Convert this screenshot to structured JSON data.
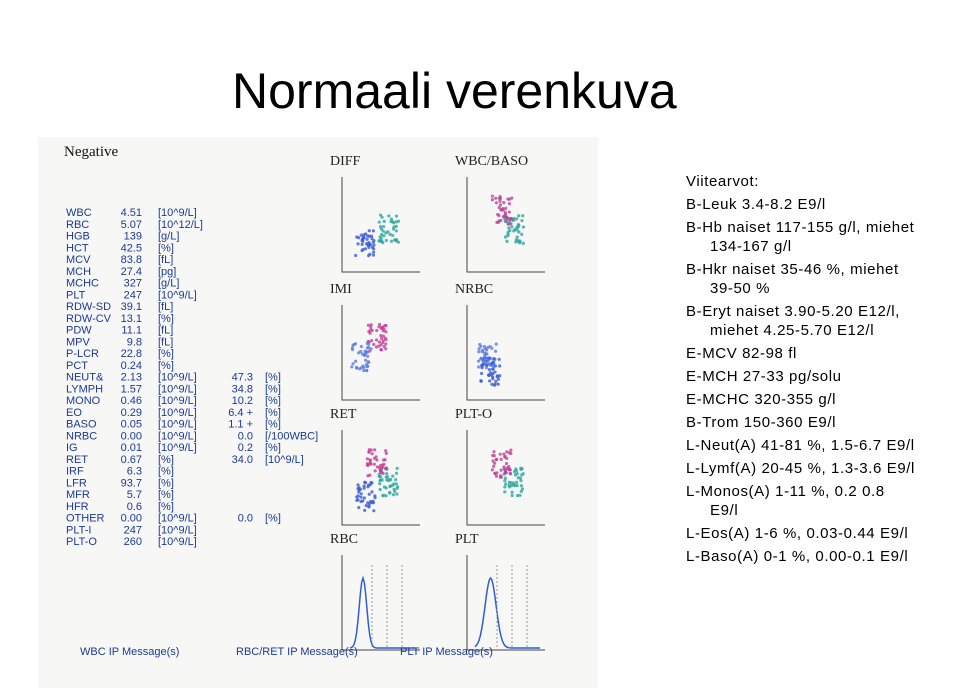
{
  "title": "Normaali verenkuva",
  "report": {
    "status": "Negative",
    "rows": [
      [
        "WBC",
        "4.51",
        "[10^9/L]"
      ],
      [
        "RBC",
        "5.07",
        "[10^12/L]"
      ],
      [
        "HGB",
        "139",
        "[g/L]"
      ],
      [
        "HCT",
        "42.5",
        "[%]"
      ],
      [
        "MCV",
        "83.8",
        "[fL]"
      ],
      [
        "MCH",
        "27.4",
        "[pg]"
      ],
      [
        "MCHC",
        "327",
        "[g/L]"
      ],
      [
        "PLT",
        "247",
        "[10^9/L]"
      ],
      [
        "RDW-SD",
        "39.1",
        "[fL]"
      ],
      [
        "RDW-CV",
        "13.1",
        "[%]"
      ],
      [
        "PDW",
        "11.1",
        "[fL]"
      ],
      [
        "MPV",
        "9.8",
        "[fL]"
      ],
      [
        "P-LCR",
        "22.8",
        "[%]"
      ],
      [
        "PCT",
        "0.24",
        "[%]"
      ],
      [
        "NEUT&",
        "2.13",
        "[10^9/L]",
        "47.3",
        "[%]"
      ],
      [
        "LYMPH",
        "1.57",
        "[10^9/L]",
        "34.8",
        "[%]"
      ],
      [
        "MONO",
        "0.46",
        "[10^9/L]",
        "10.2",
        "[%]"
      ],
      [
        "EO",
        "0.29",
        "[10^9/L]",
        "6.4 +",
        "[%]"
      ],
      [
        "BASO",
        "0.05",
        "[10^9/L]",
        "1.1 +",
        "[%]"
      ],
      [
        "NRBC",
        "0.00",
        "[10^9/L]",
        "0.0",
        "[/100WBC]"
      ],
      [
        "IG",
        "0.01",
        "[10^9/L]",
        "0.2",
        "[%]"
      ],
      [
        "RET",
        "0.67",
        "[%]",
        "34.0",
        "[10^9/L]"
      ],
      [
        "IRF",
        "6.3",
        "[%]"
      ],
      [
        "LFR",
        "93.7",
        "[%]"
      ],
      [
        "MFR",
        "5.7",
        "[%]"
      ],
      [
        "HFR",
        "0.6",
        "[%]"
      ],
      [
        "OTHER",
        "0.00",
        "[10^9/L]",
        "0.0",
        "[%]"
      ],
      [
        "PLT-I",
        "247",
        "[10^9/L]"
      ],
      [
        "PLT-O",
        "260",
        "[10^9/L]"
      ]
    ],
    "plots": [
      "DIFF",
      "WBC/BASO",
      "IMI",
      "NRBC",
      "RET",
      "PLT-O",
      "RBC",
      "PLT"
    ],
    "messages": [
      "WBC IP Message(s)",
      "RBC/RET IP Message(s)",
      "PLT IP Message(s)"
    ]
  },
  "reference": {
    "heading": "Viitearvot:",
    "items": [
      [
        "B-Leuk 3.4-8.2 E9/l"
      ],
      [
        "B-Hb naiset 117-155 g/l, miehet",
        "134-167 g/l"
      ],
      [
        "B-Hkr naiset 35-46 %, miehet",
        "39-50 %"
      ],
      [
        "B-Eryt naiset 3.90-5.20 E12/l,",
        "miehet 4.25-5.70 E12/l"
      ],
      [
        "E-MCV 82-98 fl"
      ],
      [
        "E-MCH 27-33 pg/solu"
      ],
      [
        "E-MCHC 320-355 g/l"
      ],
      [
        "B-Trom 150-360 E9/l"
      ],
      [
        "L-Neut(A) 41-81 %, 1.5-6.7 E9/l"
      ],
      [
        "L-Lymf(A) 20-45 %, 1.3-3.6 E9/l"
      ],
      [
        "L-Monos(A) 1-11 %, 0.2 0.8",
        "E9/l"
      ],
      [
        "L-Eos(A) 1-6 %, 0.03-0.44 E9/l"
      ],
      [
        "L-Baso(A) 0-1 %, 0.00-0.1 E9/l"
      ]
    ]
  }
}
